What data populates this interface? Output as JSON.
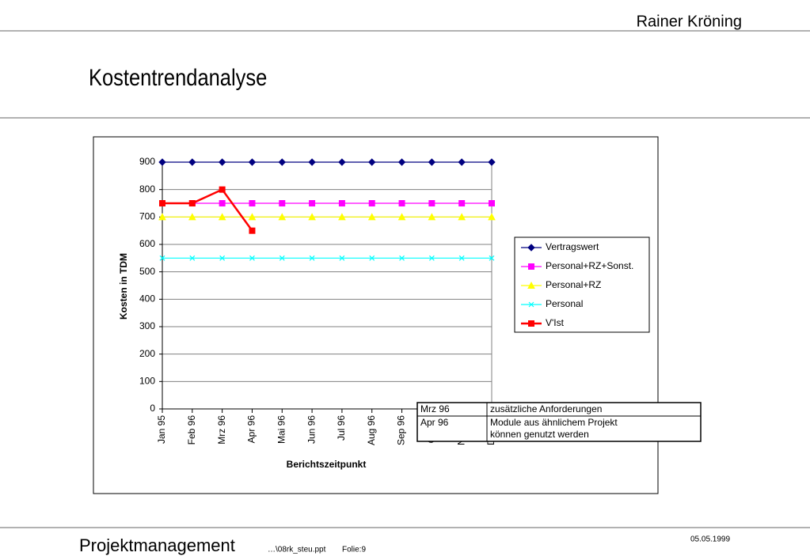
{
  "header": {
    "author": "Rainer Kröning",
    "title": "Kostentrendanalyse"
  },
  "chart_data": {
    "type": "line",
    "y_label": "Kosten in TDM",
    "x_label": "Berichtszeitpunkt",
    "categories": [
      "Jan 95",
      "Feb 96",
      "Mrz 96",
      "Apr 96",
      "Mai 96",
      "Jun 96",
      "Jul 96",
      "Aug 96",
      "Sep 96",
      "Okt 96",
      "Nov 96",
      "Dez 96"
    ],
    "ylim": [
      0,
      900
    ],
    "yticks": [
      0,
      100,
      200,
      300,
      400,
      500,
      600,
      700,
      800,
      900
    ],
    "grid": true,
    "legend": "right",
    "series": [
      {
        "name": "Vertragswert",
        "color": "#000080",
        "marker": "diamond",
        "values": [
          900,
          900,
          900,
          900,
          900,
          900,
          900,
          900,
          900,
          900,
          900,
          900
        ]
      },
      {
        "name": "Personal+RZ+Sonst.",
        "color": "#ff00ff",
        "marker": "square",
        "values": [
          750,
          750,
          750,
          750,
          750,
          750,
          750,
          750,
          750,
          750,
          750,
          750
        ]
      },
      {
        "name": "Personal+RZ",
        "color": "#ffff00",
        "marker": "triangle",
        "values": [
          700,
          700,
          700,
          700,
          700,
          700,
          700,
          700,
          700,
          700,
          700,
          700
        ]
      },
      {
        "name": "Personal",
        "color": "#00ffff",
        "marker": "x",
        "values": [
          550,
          550,
          550,
          550,
          550,
          550,
          550,
          550,
          550,
          550,
          550,
          550
        ]
      },
      {
        "name": "V'Ist",
        "color": "#ff0000",
        "marker": "square",
        "values": [
          750,
          750,
          800,
          650,
          null,
          null,
          null,
          null,
          null,
          null,
          null,
          null
        ]
      }
    ]
  },
  "notes_table": {
    "rows": [
      [
        "Mrz 96",
        [
          "zusätzliche Anforderungen"
        ]
      ],
      [
        "Apr 96",
        [
          "Module aus ähnlichem Projekt",
          "können genutzt werden"
        ]
      ]
    ]
  },
  "footer": {
    "course": "Projektmanagement",
    "file": "…\\08rk_steu.ppt",
    "slide": "Folie:9",
    "date": "05.05.1999"
  }
}
